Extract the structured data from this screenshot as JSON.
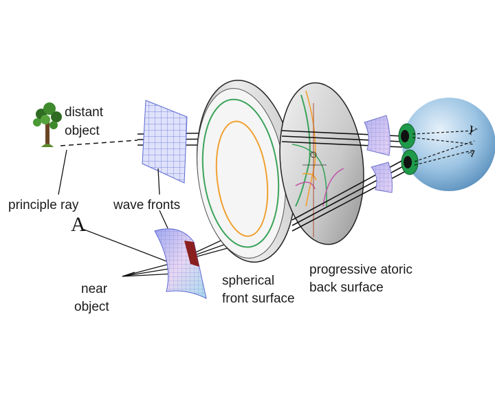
{
  "labels": {
    "distant_object_1": "distant",
    "distant_object_2": "object",
    "principle_ray": "principle ray",
    "wave_fronts": "wave fronts",
    "near_object_1": "near",
    "near_object_2": "object",
    "spherical_front_1": "spherical",
    "spherical_front_2": "front surface",
    "progressive_back_1": "progressive atoric",
    "progressive_back_2": "back surface",
    "near_letter": "A"
  },
  "colors": {
    "grid": "#6f7fd8",
    "lens": "#d9d9d9",
    "green_contour": "#3aa35a",
    "orange_contour": "#f0a030",
    "eye": "#7fb0d8",
    "pupil": "#1f9a4a"
  }
}
